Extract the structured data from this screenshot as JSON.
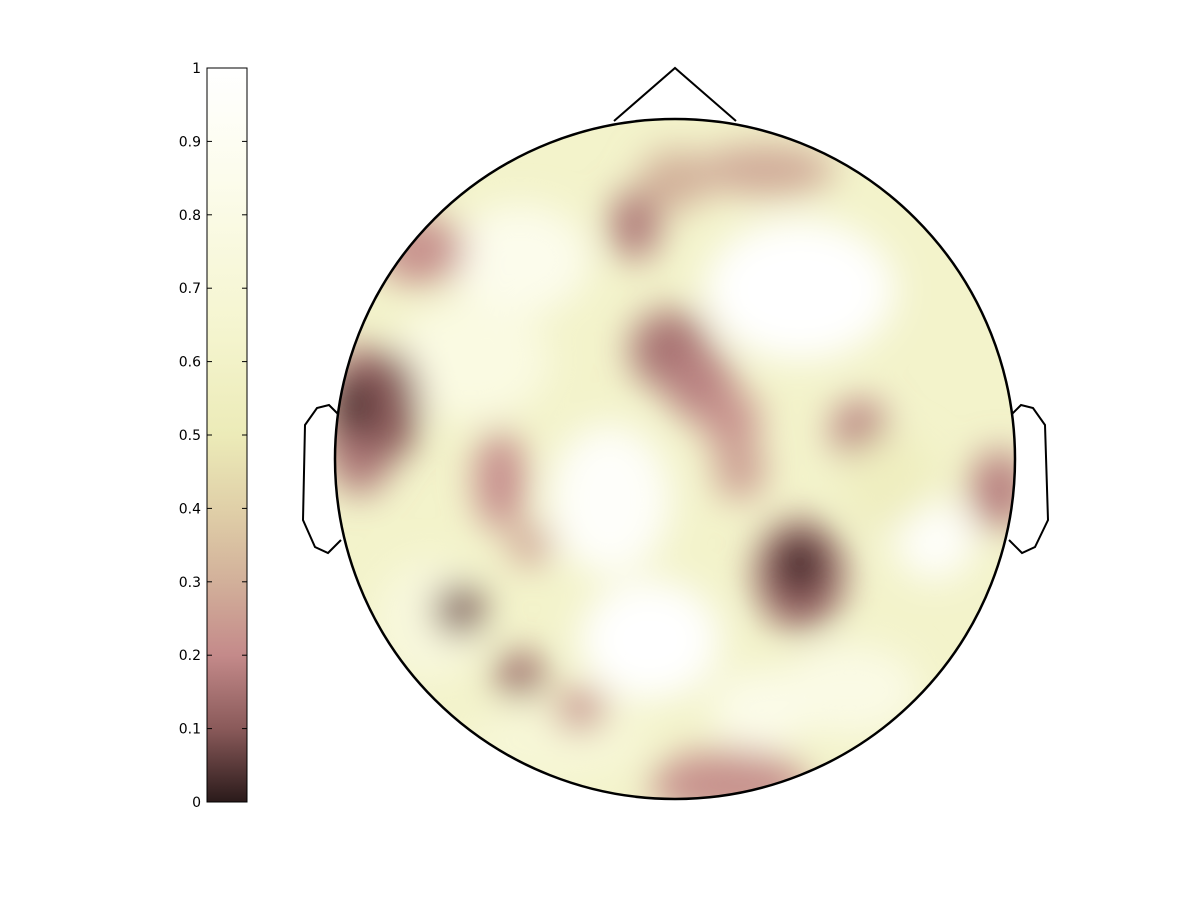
{
  "chart_data": {
    "type": "heatmap",
    "title": "",
    "colorbar": {
      "orientation": "vertical",
      "placement": "left",
      "range": [
        0,
        1
      ],
      "ticks": [
        0,
        0.1,
        0.2,
        0.3,
        0.4,
        0.5,
        0.6,
        0.7,
        0.8,
        0.9,
        1
      ],
      "tick_labels": [
        "0",
        "0.1",
        "0.2",
        "0.3",
        "0.4",
        "0.5",
        "0.6",
        "0.7",
        "0.8",
        "0.9",
        "1"
      ],
      "colormap": [
        {
          "value": 0.0,
          "color": "#2a1a1a"
        },
        {
          "value": 0.1,
          "color": "#8a5a5a"
        },
        {
          "value": 0.2,
          "color": "#c48a8a"
        },
        {
          "value": 0.3,
          "color": "#d2b09a"
        },
        {
          "value": 0.4,
          "color": "#e0d0a8"
        },
        {
          "value": 0.5,
          "color": "#ecebb8"
        },
        {
          "value": 0.65,
          "color": "#f5f5d0"
        },
        {
          "value": 0.85,
          "color": "#fcfcec"
        },
        {
          "value": 1.0,
          "color": "#ffffff"
        }
      ]
    },
    "colors": {
      "background_value": 0.62,
      "outline": "#000000"
    }
  }
}
